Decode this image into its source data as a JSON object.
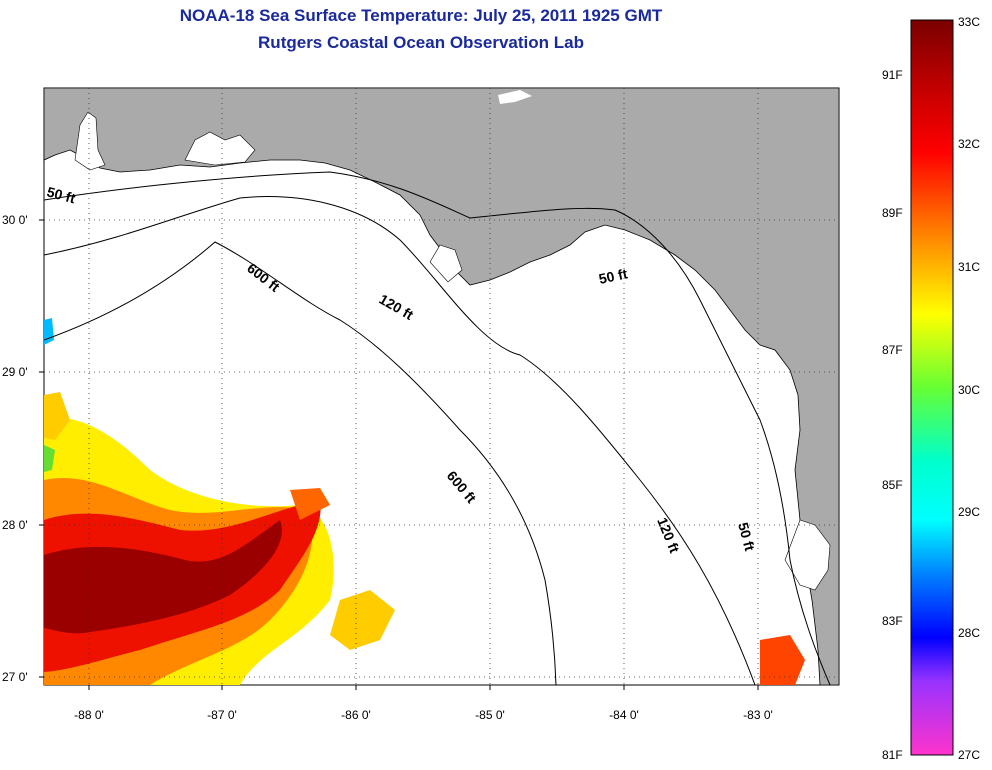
{
  "title": "NOAA-18 Sea Surface Temperature:  July 25, 2011 1925 GMT",
  "subtitle": "Rutgers Coastal Ocean Observation Lab",
  "map": {
    "x_ticks": [
      "-88 0'",
      "-87 0'",
      "-86 0'",
      "-85 0'",
      "-84 0'",
      "-83 0'"
    ],
    "y_ticks": [
      "30 0'",
      "29 0'",
      "28 0'",
      "27 0'"
    ],
    "contour_labels": [
      "50 ft",
      "600 ft",
      "120 ft",
      "50 ft",
      "600 ft",
      "120 ft",
      "50 ft"
    ],
    "land_color": "#aaaaaa",
    "water_color": "#ffffff"
  },
  "colorbar": {
    "celsius_labels": [
      "33C",
      "32C",
      "31C",
      "30C",
      "29C",
      "28C",
      "27C"
    ],
    "fahrenheit_labels": [
      "91F",
      "89F",
      "87F",
      "85F",
      "83F",
      "81F"
    ],
    "colors": [
      "#7a0000",
      "#ff0000",
      "#ff8c00",
      "#ffff00",
      "#00ff66",
      "#00ffff",
      "#0000ff",
      "#ff00ff"
    ]
  }
}
